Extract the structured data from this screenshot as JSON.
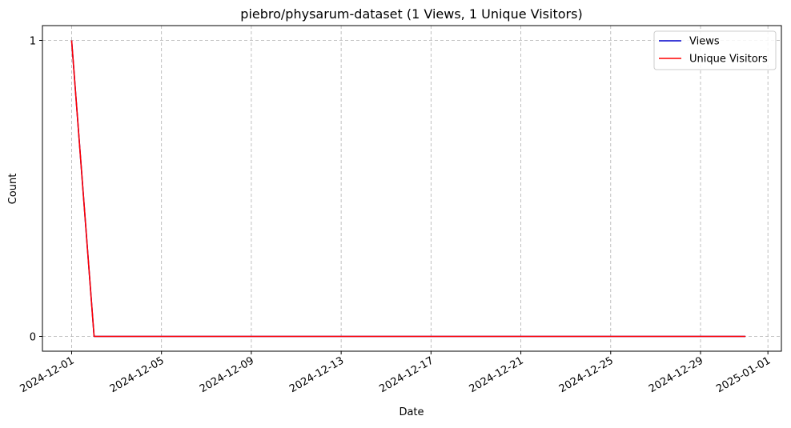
{
  "chart_data": {
    "type": "line",
    "title": "piebro/physarum-dataset (1 Views, 1 Unique Visitors)",
    "xlabel": "Date",
    "ylabel": "Count",
    "x": [
      "2024-12-01",
      "2024-12-02",
      "2024-12-03",
      "2024-12-04",
      "2024-12-05",
      "2024-12-06",
      "2024-12-07",
      "2024-12-08",
      "2024-12-09",
      "2024-12-10",
      "2024-12-11",
      "2024-12-12",
      "2024-12-13",
      "2024-12-14",
      "2024-12-15",
      "2024-12-16",
      "2024-12-17",
      "2024-12-18",
      "2024-12-19",
      "2024-12-20",
      "2024-12-21",
      "2024-12-22",
      "2024-12-23",
      "2024-12-24",
      "2024-12-25",
      "2024-12-26",
      "2024-12-27",
      "2024-12-28",
      "2024-12-29",
      "2024-12-30",
      "2024-12-31"
    ],
    "series": [
      {
        "name": "Views",
        "color": "#0000cc",
        "values": [
          1,
          0,
          0,
          0,
          0,
          0,
          0,
          0,
          0,
          0,
          0,
          0,
          0,
          0,
          0,
          0,
          0,
          0,
          0,
          0,
          0,
          0,
          0,
          0,
          0,
          0,
          0,
          0,
          0,
          0,
          0
        ]
      },
      {
        "name": "Unique Visitors",
        "color": "#ff0000",
        "values": [
          1,
          0,
          0,
          0,
          0,
          0,
          0,
          0,
          0,
          0,
          0,
          0,
          0,
          0,
          0,
          0,
          0,
          0,
          0,
          0,
          0,
          0,
          0,
          0,
          0,
          0,
          0,
          0,
          0,
          0,
          0
        ]
      }
    ],
    "xlim": [
      "2024-11-29.7",
      "2025-01-01.6"
    ],
    "ylim": [
      -0.05,
      1.05
    ],
    "x_ticks": [
      "2024-12-01",
      "2024-12-05",
      "2024-12-09",
      "2024-12-13",
      "2024-12-17",
      "2024-12-21",
      "2024-12-25",
      "2024-12-29",
      "2025-01-01"
    ],
    "y_ticks": [
      0,
      1
    ],
    "grid": true,
    "grid_style": "dashed",
    "legend_position": "top-right"
  }
}
